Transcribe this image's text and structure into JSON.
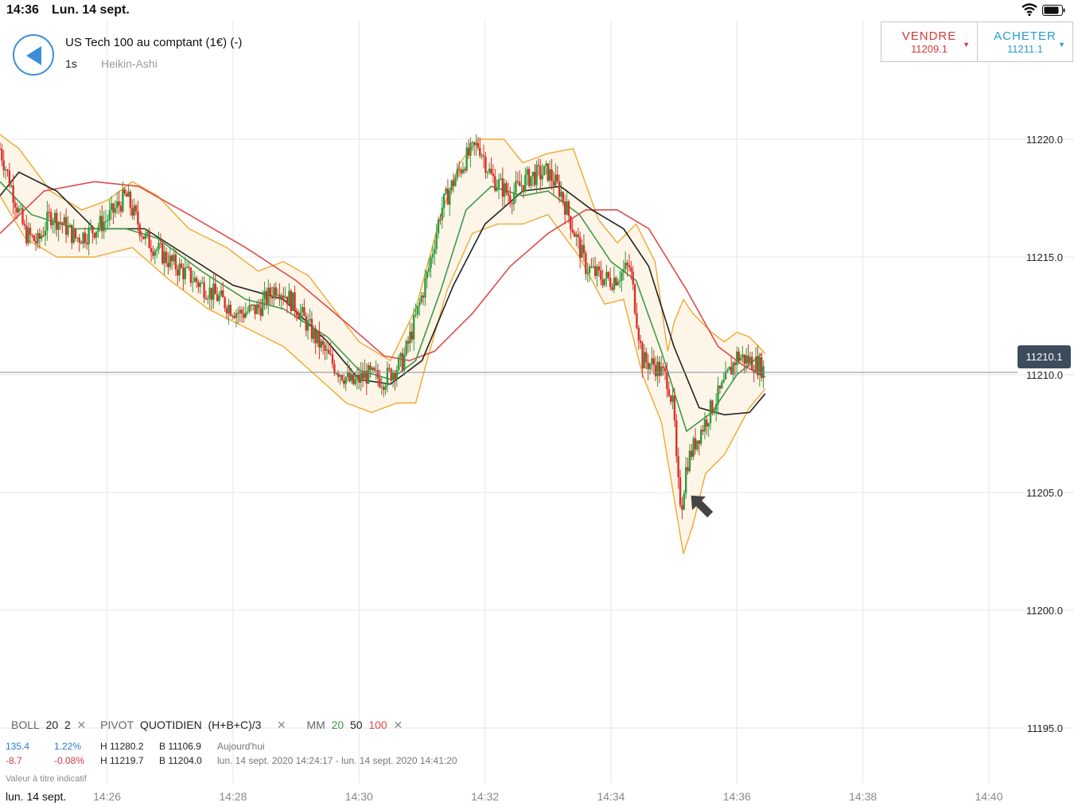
{
  "status_bar": {
    "time": "14:36",
    "date": "Lun. 14 sept."
  },
  "header": {
    "title": "US Tech 100 au comptant (1€) (-)",
    "interval": "1s",
    "chart_type": "Heikin-Ashi"
  },
  "trade": {
    "sell_label": "VENDRE",
    "sell_price": "11209.1",
    "buy_label": "ACHETER",
    "buy_price": "11211.1",
    "caret": "▼",
    "sell_color": "#d33a3a",
    "buy_color": "#2a9ad6"
  },
  "current_price": "11210.1",
  "indicators": {
    "boll_name": "BOLL",
    "boll_p1": "20",
    "boll_p2": "2",
    "pivot_name": "PIVOT",
    "pivot_p1": "QUOTIDIEN",
    "pivot_p2": "(H+B+C)/3",
    "mm_name": "MM",
    "mm_20": "20",
    "mm_50": "50",
    "mm_100": "100",
    "close": "✕"
  },
  "stats": {
    "row1_change": "135.4",
    "row1_pct": "1.22%",
    "row1_high": "H 11280.2",
    "row1_low": "B 11106.9",
    "row1_period": "Aujourd'hui",
    "row2_change": "-8.7",
    "row2_pct": "-0.08%",
    "row2_high": "H 11219.7",
    "row2_low": "B 11204.0",
    "row2_period": "lun. 14 sept. 2020 14:24:17 - lun. 14 sept. 2020 14:41:20"
  },
  "disclaimer": "Valeur à titre indicatif",
  "bottom_date": "lun. 14 sept.",
  "chart_data": {
    "type": "candlestick",
    "y_range": [
      11192.0,
      11226.0
    ],
    "y_ticks": [
      "11195.0",
      "11200.0",
      "11205.0",
      "11210.0",
      "11215.0",
      "11220.0"
    ],
    "x_ticks": [
      "14:26",
      "14:28",
      "14:30",
      "14:32",
      "14:34",
      "14:36",
      "14:38",
      "14:40"
    ],
    "x_tick_minutes": [
      26,
      28,
      30,
      32,
      34,
      36,
      38,
      40
    ],
    "x_range_minutes": [
      24.3,
      41.3
    ],
    "colors": {
      "up": "#2e9b3e",
      "down": "#d9302a",
      "ma20": "#3c9a4a",
      "ma50": "#222222",
      "ma100": "#e04a4a",
      "boll": "#f0a830",
      "boll_fill": "#fdf6e8",
      "grid": "#e6e6e6",
      "price_line": "#8a8aa6"
    },
    "close_series": [
      {
        "t": 24.3,
        "v": 11219.6
      },
      {
        "t": 24.5,
        "v": 11217.8
      },
      {
        "t": 24.7,
        "v": 11216.0
      },
      {
        "t": 24.9,
        "v": 11215.6
      },
      {
        "t": 25.1,
        "v": 11216.8
      },
      {
        "t": 25.3,
        "v": 11216.4
      },
      {
        "t": 25.5,
        "v": 11215.8
      },
      {
        "t": 25.7,
        "v": 11216.0
      },
      {
        "t": 26.0,
        "v": 11216.6
      },
      {
        "t": 26.3,
        "v": 11217.6
      },
      {
        "t": 26.6,
        "v": 11215.8
      },
      {
        "t": 27.0,
        "v": 11214.8
      },
      {
        "t": 27.4,
        "v": 11214.0
      },
      {
        "t": 27.8,
        "v": 11213.2
      },
      {
        "t": 28.1,
        "v": 11212.6
      },
      {
        "t": 28.4,
        "v": 11212.8
      },
      {
        "t": 28.7,
        "v": 11213.8
      },
      {
        "t": 29.0,
        "v": 11212.9
      },
      {
        "t": 29.3,
        "v": 11211.6
      },
      {
        "t": 29.6,
        "v": 11210.4
      },
      {
        "t": 29.9,
        "v": 11209.6
      },
      {
        "t": 30.1,
        "v": 11210.0
      },
      {
        "t": 30.4,
        "v": 11209.8
      },
      {
        "t": 30.7,
        "v": 11210.6
      },
      {
        "t": 30.9,
        "v": 11212.4
      },
      {
        "t": 31.1,
        "v": 11214.4
      },
      {
        "t": 31.3,
        "v": 11217.0
      },
      {
        "t": 31.5,
        "v": 11218.2
      },
      {
        "t": 31.7,
        "v": 11219.2
      },
      {
        "t": 31.9,
        "v": 11219.8
      },
      {
        "t": 32.1,
        "v": 11218.4
      },
      {
        "t": 32.4,
        "v": 11217.6
      },
      {
        "t": 32.7,
        "v": 11218.4
      },
      {
        "t": 33.0,
        "v": 11218.6
      },
      {
        "t": 33.2,
        "v": 11217.8
      },
      {
        "t": 33.4,
        "v": 11216.2
      },
      {
        "t": 33.6,
        "v": 11214.6
      },
      {
        "t": 33.8,
        "v": 11214.2
      },
      {
        "t": 34.0,
        "v": 11214.0
      },
      {
        "t": 34.3,
        "v": 11214.6
      },
      {
        "t": 34.5,
        "v": 11210.6
      },
      {
        "t": 34.7,
        "v": 11210.4
      },
      {
        "t": 34.9,
        "v": 11209.8
      },
      {
        "t": 35.0,
        "v": 11208.4
      },
      {
        "t": 35.05,
        "v": 11205.6
      },
      {
        "t": 35.12,
        "v": 11204.4
      },
      {
        "t": 35.2,
        "v": 11206.2
      },
      {
        "t": 35.35,
        "v": 11207.2
      },
      {
        "t": 35.6,
        "v": 11208.6
      },
      {
        "t": 35.8,
        "v": 11209.6
      },
      {
        "t": 36.0,
        "v": 11210.8
      },
      {
        "t": 36.2,
        "v": 11210.6
      },
      {
        "t": 36.4,
        "v": 11210.3
      },
      {
        "t": 36.45,
        "v": 11210.1
      }
    ],
    "ma20": [
      {
        "t": 24.3,
        "v": 11218.2
      },
      {
        "t": 24.8,
        "v": 11216.8
      },
      {
        "t": 25.5,
        "v": 11216.2
      },
      {
        "t": 26.3,
        "v": 11216.2
      },
      {
        "t": 26.8,
        "v": 11215.8
      },
      {
        "t": 27.5,
        "v": 11214.4
      },
      {
        "t": 28.2,
        "v": 11213.2
      },
      {
        "t": 28.8,
        "v": 11212.8
      },
      {
        "t": 29.5,
        "v": 11211.6
      },
      {
        "t": 30.0,
        "v": 11210.2
      },
      {
        "t": 30.5,
        "v": 11209.8
      },
      {
        "t": 30.9,
        "v": 11210.6
      },
      {
        "t": 31.3,
        "v": 11213.6
      },
      {
        "t": 31.7,
        "v": 11217.0
      },
      {
        "t": 32.1,
        "v": 11218.0
      },
      {
        "t": 32.6,
        "v": 11217.6
      },
      {
        "t": 33.0,
        "v": 11217.8
      },
      {
        "t": 33.5,
        "v": 11216.8
      },
      {
        "t": 34.0,
        "v": 11214.8
      },
      {
        "t": 34.4,
        "v": 11214.0
      },
      {
        "t": 34.8,
        "v": 11211.0
      },
      {
        "t": 35.2,
        "v": 11207.6
      },
      {
        "t": 35.6,
        "v": 11208.4
      },
      {
        "t": 36.0,
        "v": 11210.0
      },
      {
        "t": 36.4,
        "v": 11210.9
      }
    ],
    "ma50": [
      {
        "t": 24.3,
        "v": 11217.6
      },
      {
        "t": 24.6,
        "v": 11218.6
      },
      {
        "t": 25.2,
        "v": 11217.8
      },
      {
        "t": 25.8,
        "v": 11216.2
      },
      {
        "t": 26.6,
        "v": 11216.2
      },
      {
        "t": 27.3,
        "v": 11215.0
      },
      {
        "t": 28.0,
        "v": 11213.8
      },
      {
        "t": 28.8,
        "v": 11213.2
      },
      {
        "t": 29.5,
        "v": 11211.4
      },
      {
        "t": 30.0,
        "v": 11209.8
      },
      {
        "t": 30.5,
        "v": 11209.6
      },
      {
        "t": 31.0,
        "v": 11210.6
      },
      {
        "t": 31.5,
        "v": 11213.8
      },
      {
        "t": 32.0,
        "v": 11216.4
      },
      {
        "t": 32.6,
        "v": 11217.8
      },
      {
        "t": 33.2,
        "v": 11218.0
      },
      {
        "t": 33.7,
        "v": 11217.0
      },
      {
        "t": 34.2,
        "v": 11216.2
      },
      {
        "t": 34.6,
        "v": 11214.6
      },
      {
        "t": 35.0,
        "v": 11211.2
      },
      {
        "t": 35.4,
        "v": 11208.6
      },
      {
        "t": 35.8,
        "v": 11208.3
      },
      {
        "t": 36.2,
        "v": 11208.4
      },
      {
        "t": 36.45,
        "v": 11209.2
      }
    ],
    "ma100": [
      {
        "t": 24.3,
        "v": 11216.0
      },
      {
        "t": 25.0,
        "v": 11217.8
      },
      {
        "t": 25.8,
        "v": 11218.2
      },
      {
        "t": 26.5,
        "v": 11218.0
      },
      {
        "t": 27.3,
        "v": 11216.8
      },
      {
        "t": 28.2,
        "v": 11215.4
      },
      {
        "t": 29.0,
        "v": 11214.0
      },
      {
        "t": 29.8,
        "v": 11212.2
      },
      {
        "t": 30.4,
        "v": 11210.8
      },
      {
        "t": 30.8,
        "v": 11210.6
      },
      {
        "t": 31.2,
        "v": 11211.0
      },
      {
        "t": 31.8,
        "v": 11212.6
      },
      {
        "t": 32.4,
        "v": 11214.6
      },
      {
        "t": 33.0,
        "v": 11216.0
      },
      {
        "t": 33.6,
        "v": 11217.0
      },
      {
        "t": 34.1,
        "v": 11217.0
      },
      {
        "t": 34.6,
        "v": 11216.2
      },
      {
        "t": 35.2,
        "v": 11213.6
      },
      {
        "t": 35.7,
        "v": 11211.2
      },
      {
        "t": 36.1,
        "v": 11210.4
      },
      {
        "t": 36.45,
        "v": 11209.9
      }
    ],
    "boll_upper": [
      {
        "t": 24.3,
        "v": 11220.2
      },
      {
        "t": 24.6,
        "v": 11219.6
      },
      {
        "t": 25.1,
        "v": 11217.8
      },
      {
        "t": 25.6,
        "v": 11217.0
      },
      {
        "t": 26.0,
        "v": 11217.4
      },
      {
        "t": 26.4,
        "v": 11218.2
      },
      {
        "t": 26.8,
        "v": 11217.6
      },
      {
        "t": 27.3,
        "v": 11216.2
      },
      {
        "t": 27.9,
        "v": 11215.4
      },
      {
        "t": 28.4,
        "v": 11214.4
      },
      {
        "t": 28.8,
        "v": 11214.8
      },
      {
        "t": 29.2,
        "v": 11214.2
      },
      {
        "t": 29.6,
        "v": 11212.8
      },
      {
        "t": 30.0,
        "v": 11211.4
      },
      {
        "t": 30.5,
        "v": 11210.6
      },
      {
        "t": 30.9,
        "v": 11212.8
      },
      {
        "t": 31.3,
        "v": 11216.8
      },
      {
        "t": 31.6,
        "v": 11219.0
      },
      {
        "t": 31.9,
        "v": 11220.0
      },
      {
        "t": 32.3,
        "v": 11220.0
      },
      {
        "t": 32.6,
        "v": 11219.0
      },
      {
        "t": 33.0,
        "v": 11219.4
      },
      {
        "t": 33.4,
        "v": 11219.6
      },
      {
        "t": 33.8,
        "v": 11216.6
      },
      {
        "t": 34.1,
        "v": 11215.6
      },
      {
        "t": 34.4,
        "v": 11216.4
      },
      {
        "t": 34.7,
        "v": 11214.8
      },
      {
        "t": 34.9,
        "v": 11211.0
      },
      {
        "t": 35.0,
        "v": 11212.2
      },
      {
        "t": 35.15,
        "v": 11213.2
      },
      {
        "t": 35.3,
        "v": 11212.6
      },
      {
        "t": 35.6,
        "v": 11211.8
      },
      {
        "t": 35.8,
        "v": 11211.4
      },
      {
        "t": 36.0,
        "v": 11211.8
      },
      {
        "t": 36.2,
        "v": 11211.6
      },
      {
        "t": 36.45,
        "v": 11210.9
      }
    ],
    "boll_lower": [
      {
        "t": 24.3,
        "v": 11217.6
      },
      {
        "t": 24.7,
        "v": 11215.8
      },
      {
        "t": 25.2,
        "v": 11215.0
      },
      {
        "t": 25.8,
        "v": 11215.0
      },
      {
        "t": 26.4,
        "v": 11215.4
      },
      {
        "t": 27.0,
        "v": 11214.0
      },
      {
        "t": 27.6,
        "v": 11212.8
      },
      {
        "t": 28.2,
        "v": 11212.0
      },
      {
        "t": 28.8,
        "v": 11211.2
      },
      {
        "t": 29.3,
        "v": 11210.0
      },
      {
        "t": 29.8,
        "v": 11208.8
      },
      {
        "t": 30.2,
        "v": 11208.4
      },
      {
        "t": 30.6,
        "v": 11208.8
      },
      {
        "t": 30.9,
        "v": 11208.8
      },
      {
        "t": 31.1,
        "v": 11210.8
      },
      {
        "t": 31.4,
        "v": 11213.6
      },
      {
        "t": 31.8,
        "v": 11216.0
      },
      {
        "t": 32.2,
        "v": 11216.4
      },
      {
        "t": 32.6,
        "v": 11216.4
      },
      {
        "t": 33.0,
        "v": 11216.8
      },
      {
        "t": 33.5,
        "v": 11215.0
      },
      {
        "t": 33.9,
        "v": 11213.0
      },
      {
        "t": 34.2,
        "v": 11213.2
      },
      {
        "t": 34.5,
        "v": 11210.0
      },
      {
        "t": 34.8,
        "v": 11208.0
      },
      {
        "t": 35.0,
        "v": 11204.8
      },
      {
        "t": 35.15,
        "v": 11202.4
      },
      {
        "t": 35.3,
        "v": 11203.6
      },
      {
        "t": 35.5,
        "v": 11205.8
      },
      {
        "t": 35.8,
        "v": 11206.6
      },
      {
        "t": 36.0,
        "v": 11207.6
      },
      {
        "t": 36.2,
        "v": 11208.6
      },
      {
        "t": 36.45,
        "v": 11209.4
      }
    ]
  }
}
